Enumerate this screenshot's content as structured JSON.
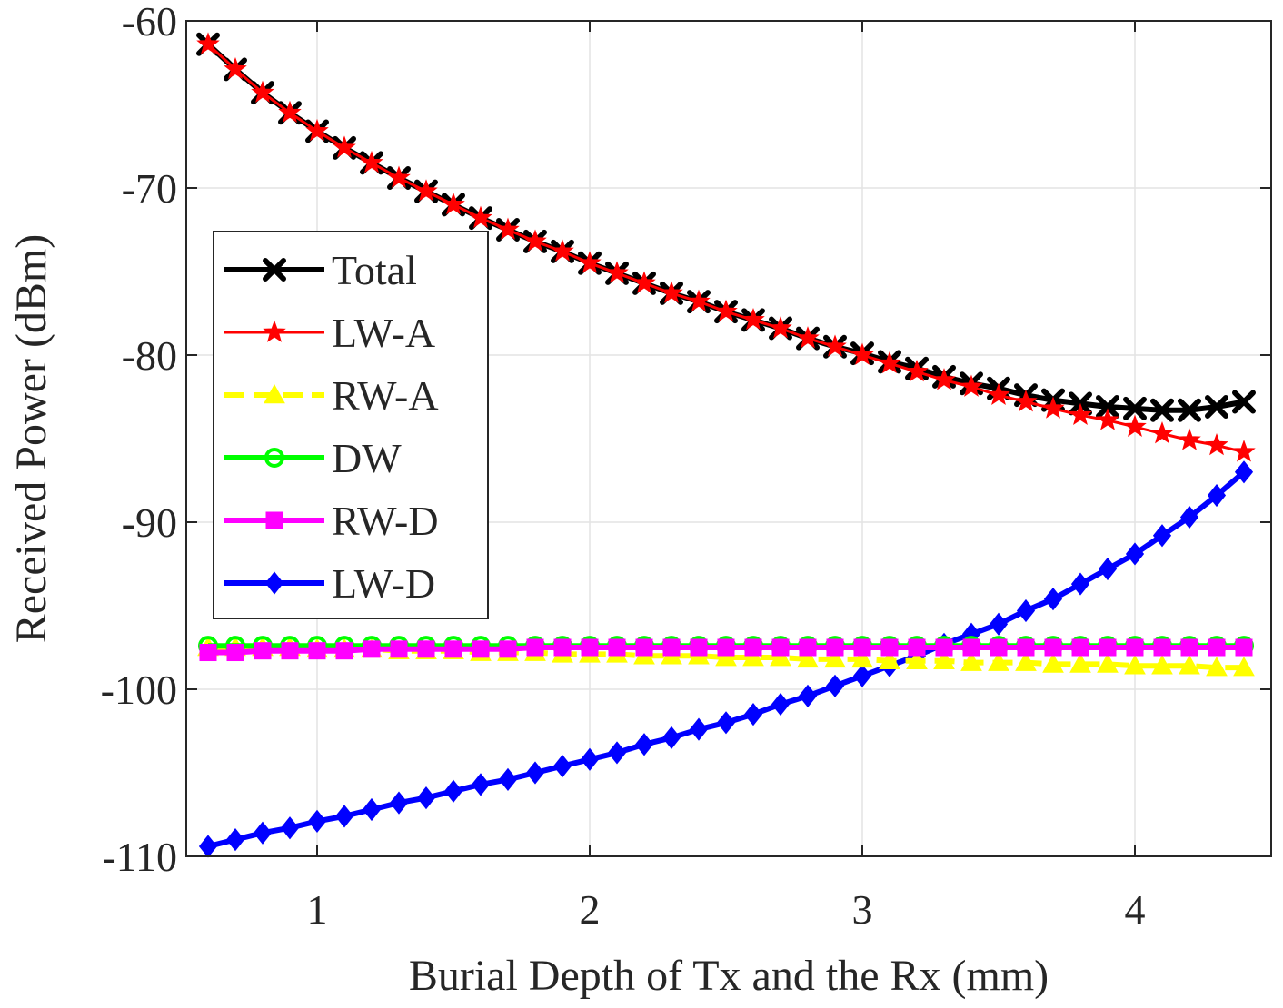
{
  "chart_data": {
    "type": "line",
    "title": "",
    "xlabel": "Burial Depth of Tx and the Rx (mm)",
    "ylabel": "Received Power (dBm)",
    "xlim": [
      0.52,
      4.5
    ],
    "ylim": [
      -110,
      -60
    ],
    "xticks": [
      1,
      2,
      3,
      4
    ],
    "yticks": [
      -60,
      -70,
      -80,
      -90,
      -100,
      -110
    ],
    "xtick_labels": [
      "1",
      "2",
      "3",
      "4"
    ],
    "ytick_labels": [
      "-60",
      "-70",
      "-80",
      "-90",
      "-100",
      "-110"
    ],
    "grid": true,
    "legend_position": "upper-left",
    "x": [
      0.6,
      0.7,
      0.8,
      0.9,
      1.0,
      1.1,
      1.2,
      1.3,
      1.4,
      1.5,
      1.6,
      1.7,
      1.8,
      1.9,
      2.0,
      2.1,
      2.2,
      2.3,
      2.4,
      2.5,
      2.6,
      2.7,
      2.8,
      2.9,
      3.0,
      3.1,
      3.2,
      3.3,
      3.4,
      3.5,
      3.6,
      3.7,
      3.8,
      3.9,
      4.0,
      4.1,
      4.2,
      4.3,
      4.4
    ],
    "series": [
      {
        "name": "Total",
        "color": "#000000",
        "marker": "x",
        "values": [
          -61.4,
          -62.9,
          -64.3,
          -65.5,
          -66.6,
          -67.6,
          -68.5,
          -69.4,
          -70.2,
          -71.0,
          -71.8,
          -72.5,
          -73.2,
          -73.8,
          -74.5,
          -75.1,
          -75.7,
          -76.3,
          -76.8,
          -77.4,
          -77.9,
          -78.4,
          -79.0,
          -79.5,
          -79.9,
          -80.4,
          -80.8,
          -81.3,
          -81.7,
          -82.0,
          -82.4,
          -82.7,
          -82.9,
          -83.1,
          -83.2,
          -83.3,
          -83.3,
          -83.1,
          -82.8
        ]
      },
      {
        "name": "LW-A",
        "color": "#ff0000",
        "marker": "star",
        "values": [
          -61.4,
          -62.9,
          -64.3,
          -65.5,
          -66.6,
          -67.6,
          -68.5,
          -69.4,
          -70.2,
          -71.0,
          -71.8,
          -72.5,
          -73.2,
          -73.8,
          -74.5,
          -75.1,
          -75.7,
          -76.3,
          -76.8,
          -77.4,
          -77.9,
          -78.4,
          -79.0,
          -79.5,
          -80.0,
          -80.5,
          -81.0,
          -81.5,
          -81.9,
          -82.4,
          -82.8,
          -83.2,
          -83.6,
          -83.9,
          -84.3,
          -84.7,
          -85.1,
          -85.4,
          -85.8
        ]
      },
      {
        "name": "RW-A",
        "color": "#ffff00",
        "marker": "triangle",
        "dashed": true,
        "values": [
          -97.5,
          -97.5,
          -97.5,
          -97.5,
          -97.6,
          -97.6,
          -97.6,
          -97.7,
          -97.7,
          -97.7,
          -97.8,
          -97.8,
          -97.8,
          -97.9,
          -97.9,
          -97.9,
          -98.0,
          -98.0,
          -98.0,
          -98.1,
          -98.1,
          -98.1,
          -98.2,
          -98.2,
          -98.2,
          -98.3,
          -98.3,
          -98.3,
          -98.4,
          -98.4,
          -98.4,
          -98.5,
          -98.5,
          -98.5,
          -98.6,
          -98.6,
          -98.6,
          -98.7,
          -98.7
        ]
      },
      {
        "name": "DW",
        "color": "#00ff00",
        "marker": "circle",
        "values": [
          -97.4,
          -97.4,
          -97.4,
          -97.4,
          -97.4,
          -97.4,
          -97.4,
          -97.4,
          -97.4,
          -97.4,
          -97.4,
          -97.4,
          -97.4,
          -97.4,
          -97.4,
          -97.4,
          -97.4,
          -97.4,
          -97.4,
          -97.4,
          -97.4,
          -97.4,
          -97.4,
          -97.4,
          -97.4,
          -97.4,
          -97.4,
          -97.4,
          -97.4,
          -97.4,
          -97.4,
          -97.4,
          -97.4,
          -97.4,
          -97.4,
          -97.4,
          -97.4,
          -97.4,
          -97.4
        ]
      },
      {
        "name": "RW-D",
        "color": "#ff00ff",
        "marker": "square",
        "values": [
          -97.8,
          -97.8,
          -97.7,
          -97.7,
          -97.7,
          -97.7,
          -97.6,
          -97.6,
          -97.6,
          -97.6,
          -97.6,
          -97.6,
          -97.5,
          -97.5,
          -97.5,
          -97.5,
          -97.5,
          -97.5,
          -97.5,
          -97.5,
          -97.5,
          -97.5,
          -97.5,
          -97.5,
          -97.5,
          -97.5,
          -97.5,
          -97.5,
          -97.5,
          -97.5,
          -97.5,
          -97.5,
          -97.5,
          -97.5,
          -97.5,
          -97.5,
          -97.5,
          -97.5,
          -97.5
        ]
      },
      {
        "name": "LW-D",
        "color": "#0000ff",
        "marker": "diamond",
        "values": [
          -109.4,
          -109.0,
          -108.6,
          -108.3,
          -107.9,
          -107.6,
          -107.2,
          -106.8,
          -106.5,
          -106.1,
          -105.7,
          -105.4,
          -105.0,
          -104.6,
          -104.2,
          -103.8,
          -103.3,
          -102.9,
          -102.4,
          -102.0,
          -101.5,
          -100.9,
          -100.4,
          -99.8,
          -99.2,
          -98.6,
          -98.0,
          -97.3,
          -96.7,
          -96.1,
          -95.3,
          -94.6,
          -93.7,
          -92.8,
          -91.9,
          -90.8,
          -89.7,
          -88.4,
          -87.0
        ]
      }
    ]
  }
}
